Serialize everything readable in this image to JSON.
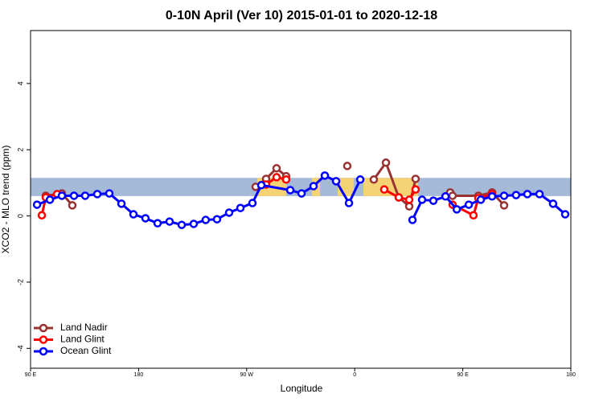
{
  "chart_data": {
    "type": "line",
    "title": "0-10N April (Ver 10)   2015-01-01 to 2020-12-18",
    "x_label": "Longitude",
    "y_label": "XCO2 - MLO trend (ppm)",
    "xlim": [
      90,
      540
    ],
    "xticks": [
      {
        "value": 90,
        "label": "90 E"
      },
      180,
      {
        "value": 270,
        "label": "90 W"
      },
      {
        "value": 360,
        "label": "0"
      },
      {
        "value": 450,
        "label": "90 E"
      },
      {
        "value": 540,
        "label": "180"
      }
    ],
    "ylim": [
      -4.6,
      5.6
    ],
    "yticks": [
      -4,
      -2,
      0,
      2,
      4
    ],
    "band_range": [
      0.6,
      1.15
    ],
    "band_color": "#a5b9d9",
    "legend": "bottom-left",
    "series": [
      {
        "name": "Land Nadir",
        "color": "#993333",
        "x": [
          102.7,
          116.1,
          124.8,
          200,
          277.5,
          286.2,
          294.9,
          302.9,
          330,
          353.8,
          365,
          375.9,
          386.0,
          396.7,
          405.4,
          410.7,
          425,
          439.5,
          441.5,
          463.0,
          474.4,
          484.4
        ],
        "values": [
          0.61,
          0.68,
          0.32,
          null,
          0.88,
          1.12,
          1.44,
          1.2,
          null,
          1.51,
          null,
          1.1,
          1.61,
          0.56,
          0.29,
          1.12,
          null,
          0.71,
          0.61,
          0.61,
          0.71,
          0.32
        ]
      },
      {
        "name": "Land Glint",
        "color": "#ff0000",
        "x": [
          99.4,
          102.7,
          112.1,
          200,
          286.2,
          294.9,
          302.9,
          350,
          384.6,
          396.7,
          405.4,
          410.7,
          425,
          441.5,
          458.9,
          463.0,
          474.4
        ],
        "values": [
          0.02,
          0.56,
          0.66,
          null,
          0.95,
          1.17,
          1.1,
          null,
          0.8,
          0.56,
          0.49,
          0.8,
          null,
          0.34,
          0.02,
          0.54,
          0.66
        ]
      },
      {
        "name": "Ocean Glint",
        "color": "#0000ff",
        "x": [
          95.4,
          106.1,
          116.1,
          126.2,
          135.5,
          145.6,
          155.6,
          165.7,
          175.7,
          185.7,
          195.8,
          205.8,
          215.9,
          225.9,
          235.9,
          245.3,
          255.4,
          264.8,
          274.8,
          282.2,
          306.3,
          315.7,
          325.7,
          335.1,
          344.5,
          355.2,
          364.6,
          386,
          408.1,
          416.1,
          425.5,
          435.6,
          445.0,
          455.0,
          465.0,
          474.4,
          484.4,
          494.4,
          503.8,
          513.9,
          525.2,
          535.3
        ],
        "values": [
          0.34,
          0.49,
          0.61,
          0.61,
          0.61,
          0.66,
          0.68,
          0.37,
          0.05,
          -0.07,
          -0.22,
          -0.17,
          -0.27,
          -0.24,
          -0.12,
          -0.1,
          0.1,
          0.24,
          0.39,
          0.93,
          0.78,
          0.68,
          0.9,
          1.22,
          1.05,
          0.39,
          1.1,
          null,
          -0.12,
          0.49,
          0.46,
          0.59,
          0.2,
          0.34,
          0.49,
          0.59,
          0.61,
          0.63,
          0.66,
          0.66,
          0.37,
          0.05
        ]
      }
    ]
  }
}
